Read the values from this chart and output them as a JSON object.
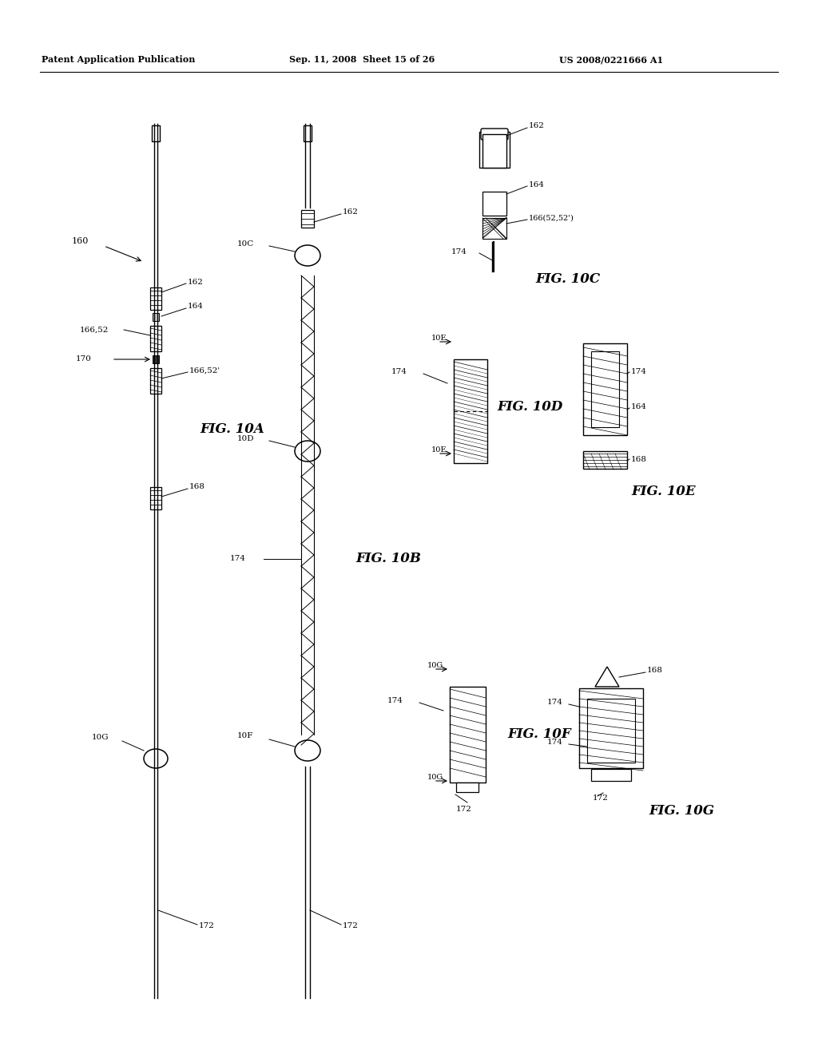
{
  "bg_color": "#ffffff",
  "header_left": "Patent Application Publication",
  "header_mid": "Sep. 11, 2008  Sheet 15 of 26",
  "header_right": "US 2008/0221666 A1",
  "fig_labels": {
    "10A": "FIG. 10A",
    "10B": "FIG. 10B",
    "10C": "FIG. 10C",
    "10D": "FIG. 10D",
    "10E": "FIG. 10E",
    "10F": "FIG. 10F",
    "10G": "FIG. 10G"
  }
}
